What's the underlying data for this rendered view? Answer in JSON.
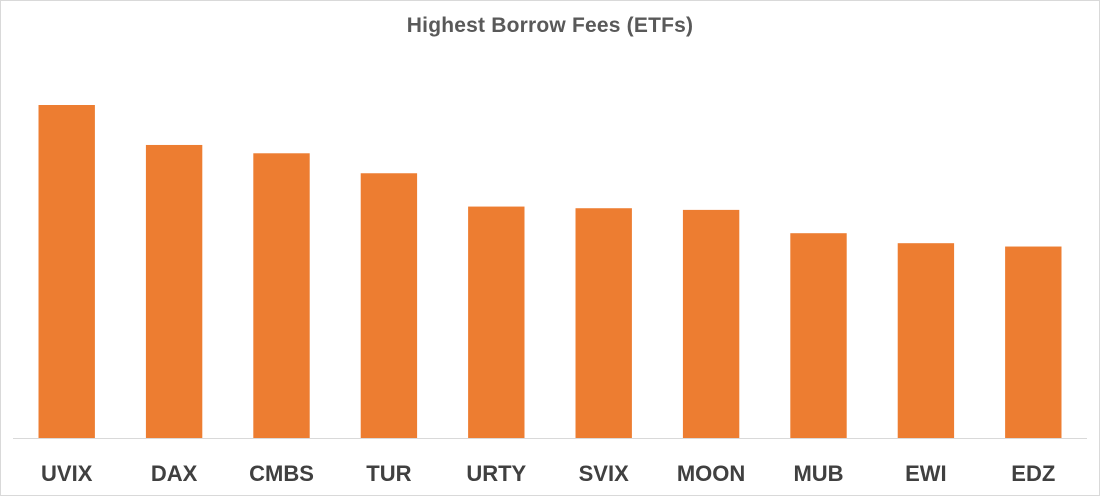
{
  "chart_data": {
    "type": "bar",
    "title": "Highest Borrow Fees (ETFs)",
    "categories": [
      "UVIX",
      "DAX",
      "CMBS",
      "TUR",
      "URTY",
      "SVIX",
      "MOON",
      "MUB",
      "EWI",
      "EDZ"
    ],
    "values": [
      100,
      88,
      85.5,
      79.5,
      69.5,
      69,
      68.5,
      61.5,
      58.5,
      57.5
    ],
    "xlabel": "",
    "ylabel": "",
    "ylim": [
      0,
      100
    ],
    "grid": false,
    "legend": "none",
    "colors": {
      "bar": "#ED7D31",
      "axis": "#d9d9d9",
      "title": "#595959",
      "tick_label": "#404040"
    }
  }
}
